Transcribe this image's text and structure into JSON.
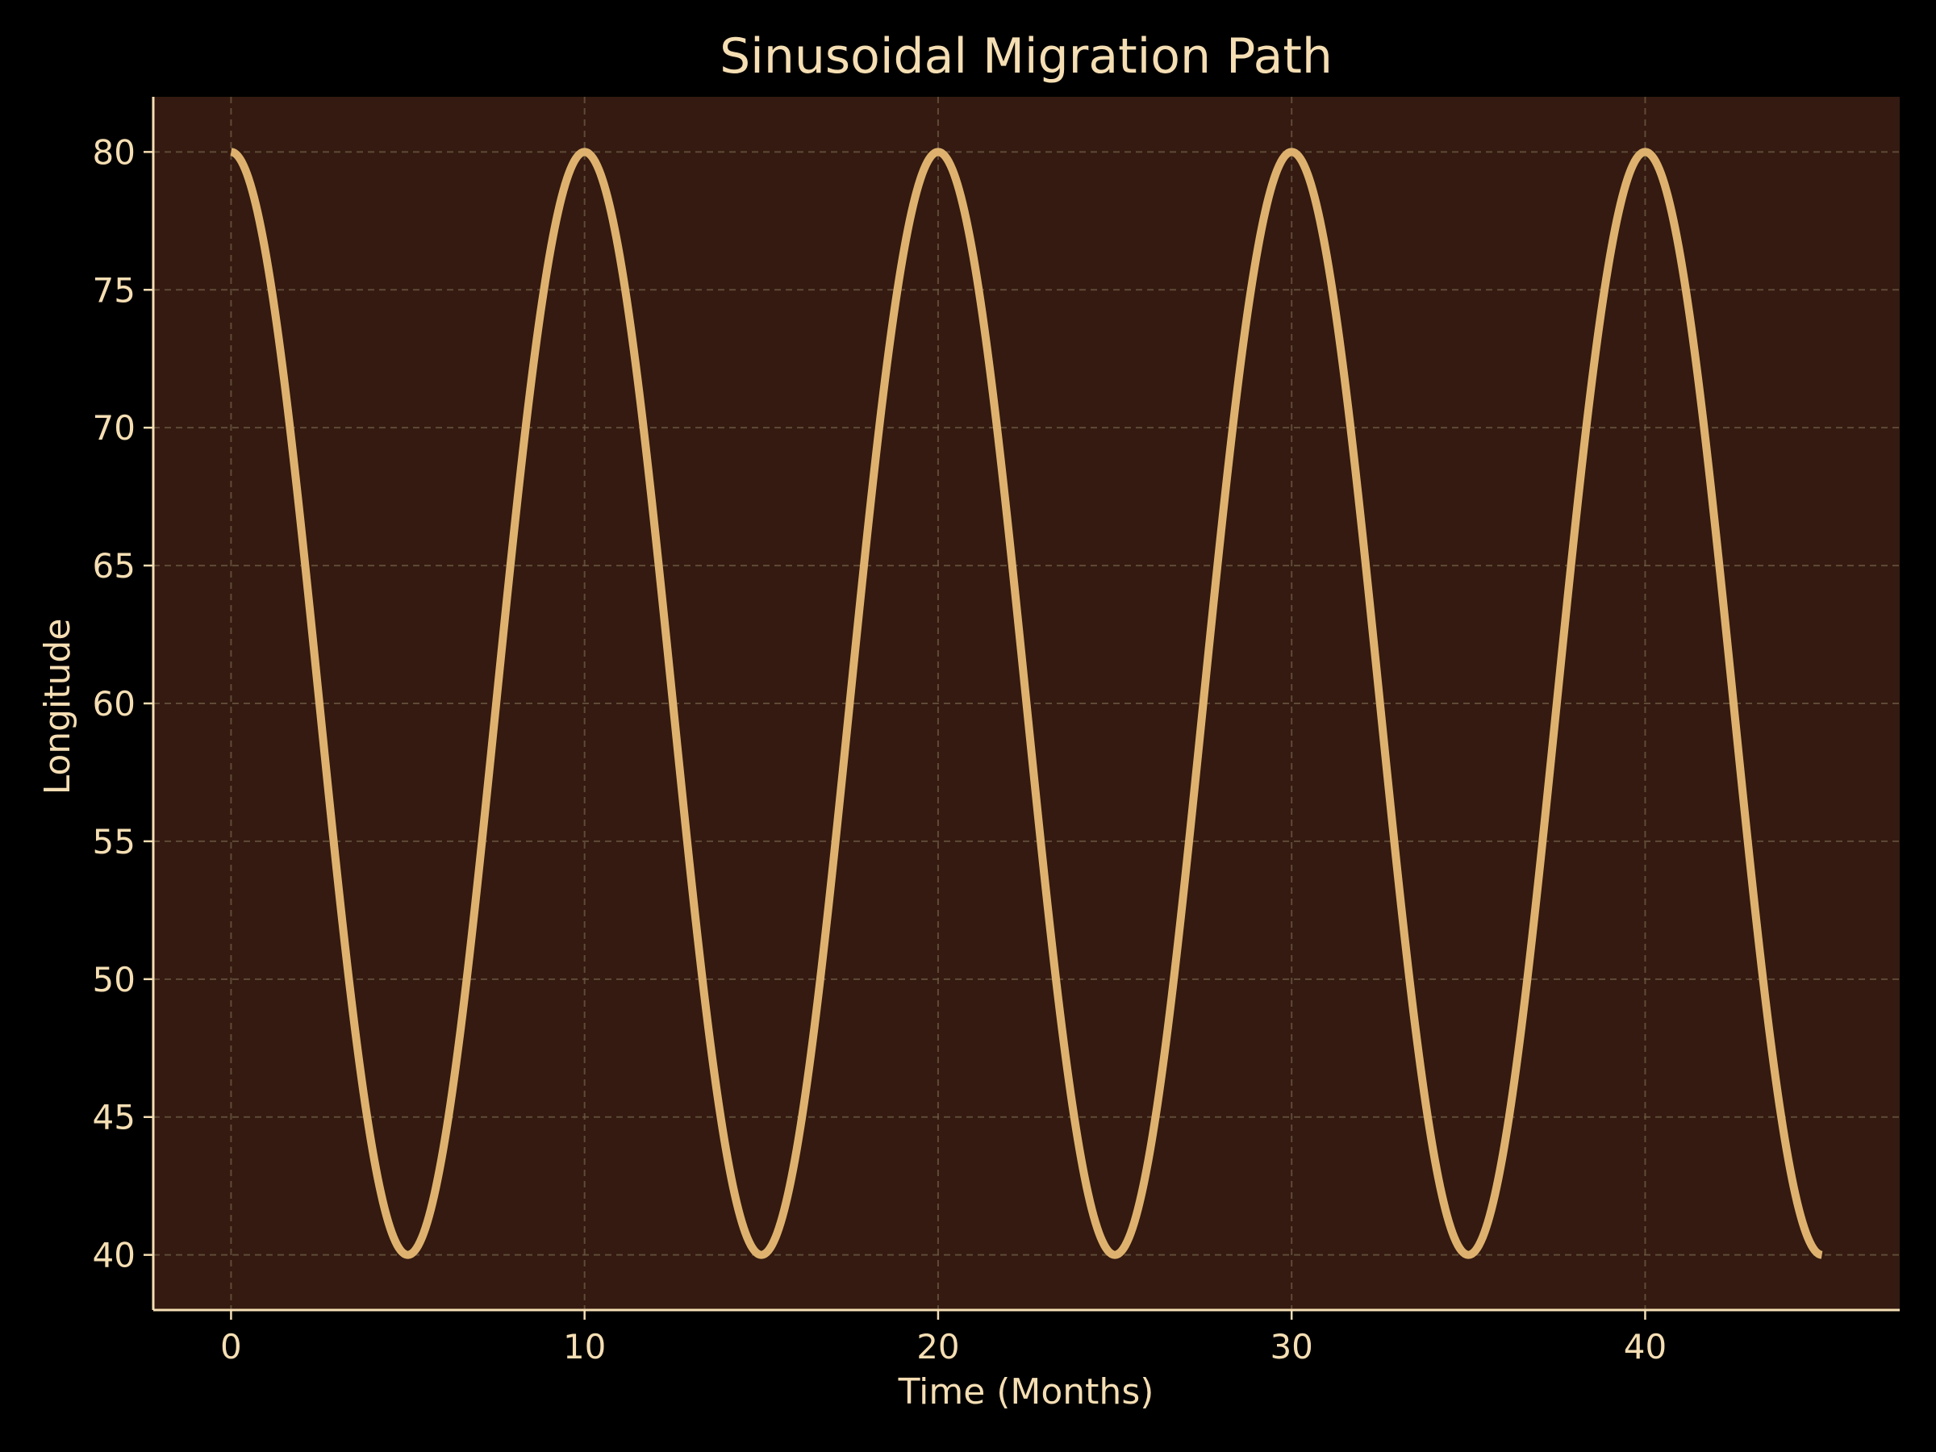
{
  "chart_data": {
    "type": "line",
    "title": "Sinusoidal Migration Path",
    "xlabel": "Time (Months)",
    "ylabel": "Longitude",
    "xlim": [
      -2.2,
      47.2
    ],
    "ylim": [
      38,
      82
    ],
    "xticks": [
      0,
      10,
      20,
      30,
      40
    ],
    "yticks": [
      40,
      45,
      50,
      55,
      60,
      65,
      70,
      75,
      80
    ],
    "grid": true,
    "series": [
      {
        "x": [
          0,
          2.5,
          5,
          7.5,
          10,
          12.5,
          15,
          17.5,
          20,
          22.5,
          25,
          27.5,
          30,
          32.5,
          35,
          37.5,
          40,
          42.5,
          45
        ],
        "y": [
          80,
          60,
          40,
          60,
          80,
          60,
          40,
          60,
          80,
          60,
          40,
          60,
          80,
          60,
          40,
          60,
          80,
          60,
          40
        ],
        "shape": "cosine",
        "mean": 60,
        "amplitude": 20,
        "period": 10,
        "color": "#deb26e"
      }
    ],
    "colors": {
      "figure_background": "#000000",
      "plot_background": "#341a10",
      "text": "#f5deb3",
      "grid": "#6e5a44"
    }
  }
}
